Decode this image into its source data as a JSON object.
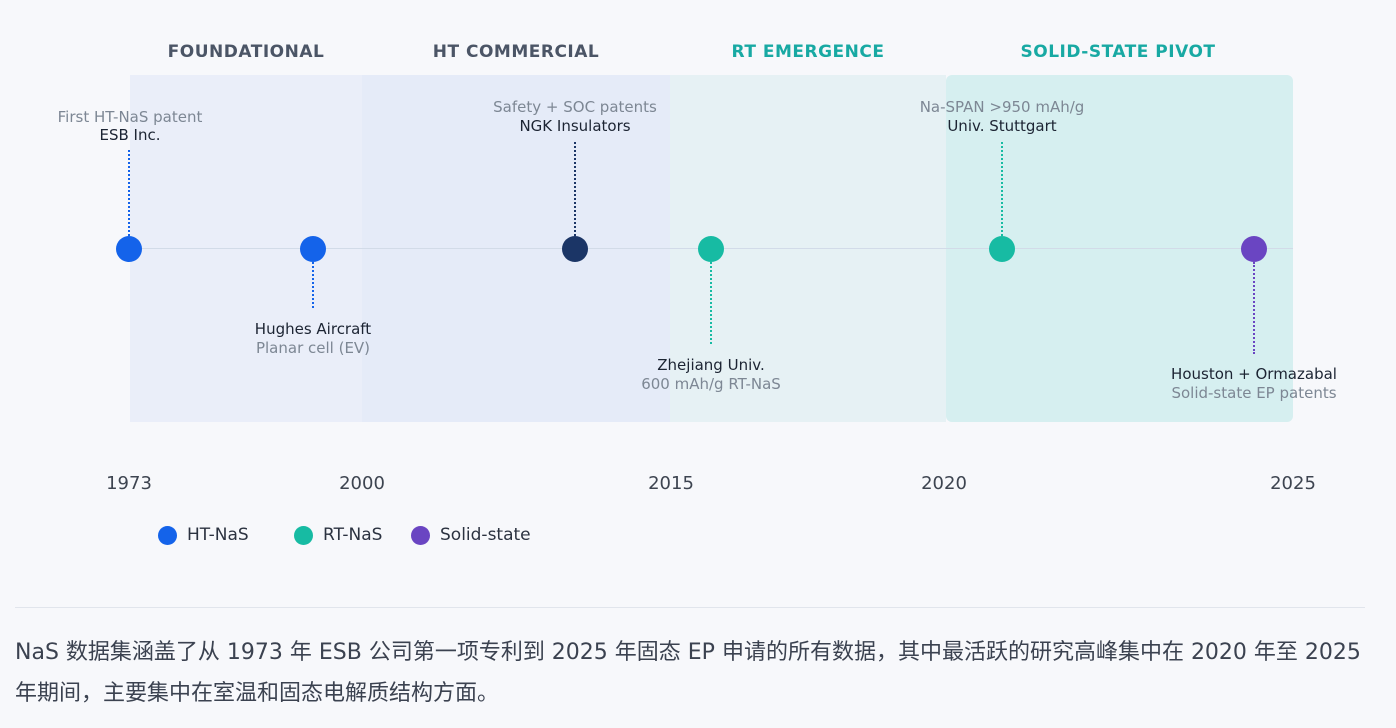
{
  "eras": [
    {
      "label": "FOUNDATIONAL",
      "color": "#4b5566"
    },
    {
      "label": "HT COMMERCIAL",
      "color": "#4b5566"
    },
    {
      "label": "RT EMERGENCE",
      "color": "#18a9a3"
    },
    {
      "label": "SOLID-STATE PIVOT",
      "color": "#18a9a3"
    }
  ],
  "events": [
    {
      "title": "ESB Inc.",
      "subtitle": "First HT-NaS patent",
      "type": "HT-NaS",
      "color": "#1463ea"
    },
    {
      "title": "Hughes Aircraft",
      "subtitle": "Planar cell (EV)",
      "type": "HT-NaS",
      "color": "#1463ea"
    },
    {
      "title": "NGK Insulators",
      "subtitle": "Safety + SOC patents",
      "type": "HT-NaS",
      "color": "#1b3566"
    },
    {
      "title": "Zhejiang Univ.",
      "subtitle": "600 mAh/g RT-NaS",
      "type": "RT-NaS",
      "color": "#17bba3"
    },
    {
      "title": "Univ. Stuttgart",
      "subtitle": "Na-SPAN >950 mAh/g",
      "type": "RT-NaS",
      "color": "#17bba3"
    },
    {
      "title": "Houston + Ormazabal",
      "subtitle": "Solid-state EP patents",
      "type": "Solid-state",
      "color": "#6a45c2"
    }
  ],
  "years": [
    "1973",
    "2000",
    "2015",
    "2020",
    "2025"
  ],
  "legend": [
    {
      "label": "HT-NaS",
      "color": "#1463ea"
    },
    {
      "label": "RT-NaS",
      "color": "#17bba3"
    },
    {
      "label": "Solid-state",
      "color": "#6a45c2"
    }
  ],
  "caption": "NaS 数据集涵盖了从 1973 年 ESB 公司第一项专利到 2025 年固态 EP 申请的所有数据，其中最活跃的研究高峰集中在 2020 年至 2025 年期间，主要集中在室温和固态电解质结构方面。"
}
